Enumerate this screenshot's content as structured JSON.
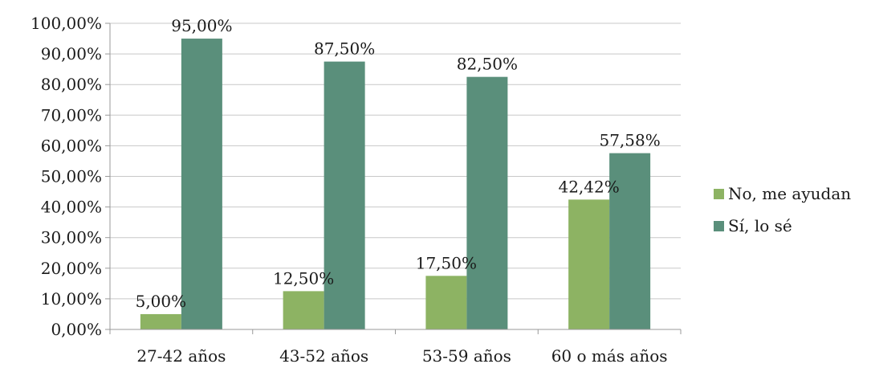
{
  "chart_data": {
    "type": "bar",
    "categories": [
      "27-42 años",
      "43-52 años",
      "53-59 años",
      "60 o más años"
    ],
    "series": [
      {
        "name": "No, me ayudan",
        "values": [
          5.0,
          12.5,
          17.5,
          42.42
        ],
        "labels": [
          "5,00%",
          "12,50%",
          "17,50%",
          "42,42%"
        ],
        "color": "#8DB363"
      },
      {
        "name": "Sí, lo sé",
        "values": [
          95.0,
          87.5,
          82.5,
          57.58
        ],
        "labels": [
          "95,00%",
          "87,50%",
          "82,50%",
          "57,58%"
        ],
        "color": "#5A8F7B"
      }
    ],
    "y_ticks": [
      "0,00%",
      "10,00%",
      "20,00%",
      "30,00%",
      "40,00%",
      "50,00%",
      "60,00%",
      "70,00%",
      "80,00%",
      "90,00%",
      "100,00%"
    ],
    "ylim": [
      0,
      100
    ],
    "grid": true,
    "legend_position": "right",
    "gridline_color": "#C8C8C8",
    "axis_color": "#999999"
  }
}
